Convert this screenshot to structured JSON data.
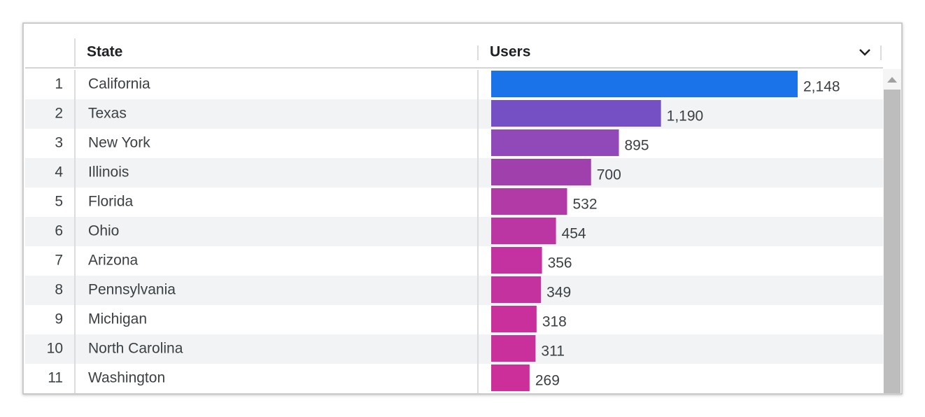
{
  "table": {
    "header": [
      "State",
      "Users"
    ],
    "rows": [
      {
        "rank": 1,
        "state": "California",
        "users": {
          "value": 2148,
          "label": "2,148"
        },
        "color": "#1a73e8"
      },
      {
        "rank": 2,
        "state": "Texas",
        "users": {
          "value": 1190,
          "label": "1,190"
        },
        "color": "#7450c4"
      },
      {
        "rank": 3,
        "state": "New York",
        "users": {
          "value": 895,
          "label": "895"
        },
        "color": "#9148b8"
      },
      {
        "rank": 4,
        "state": "Illinois",
        "users": {
          "value": 700,
          "label": "700"
        },
        "color": "#a040ac"
      },
      {
        "rank": 5,
        "state": "Florida",
        "users": {
          "value": 532,
          "label": "532"
        },
        "color": "#b23aa6"
      },
      {
        "rank": 6,
        "state": "Ohio",
        "users": {
          "value": 454,
          "label": "454"
        },
        "color": "#bb36a2"
      },
      {
        "rank": 7,
        "state": "Arizona",
        "users": {
          "value": 356,
          "label": "356"
        },
        "color": "#c332a0"
      },
      {
        "rank": 8,
        "state": "Pennsylvania",
        "users": {
          "value": 349,
          "label": "349"
        },
        "color": "#c4329f"
      },
      {
        "rank": 9,
        "state": "Michigan",
        "users": {
          "value": 318,
          "label": "318"
        },
        "color": "#c9309c"
      },
      {
        "rank": 10,
        "state": "North Carolina",
        "users": {
          "value": 311,
          "label": "311"
        },
        "color": "#ca309b"
      },
      {
        "rank": 11,
        "state": "Washington",
        "users": {
          "value": 269,
          "label": "269"
        },
        "color": "#cc2f99"
      }
    ]
  }
}
